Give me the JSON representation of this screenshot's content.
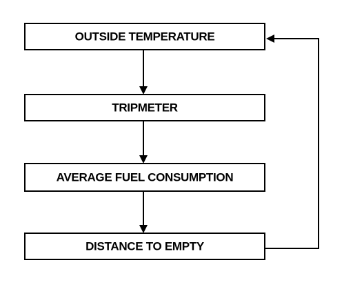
{
  "nodes": [
    {
      "label": "OUTSIDE TEMPERATURE"
    },
    {
      "label": "TRIPMETER"
    },
    {
      "label": "AVERAGE FUEL CONSUMPTION"
    },
    {
      "label": "DISTANCE TO EMPTY"
    }
  ]
}
